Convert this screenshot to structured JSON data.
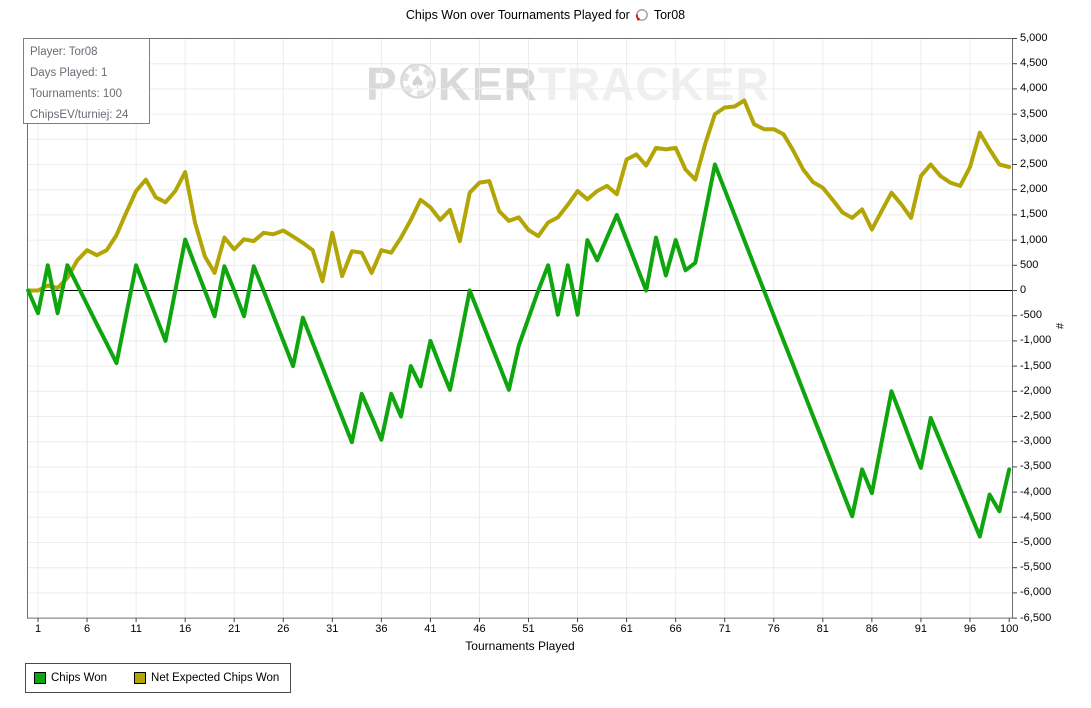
{
  "title": {
    "text": "Chips Won over Tournaments Played for",
    "player": "Tor08"
  },
  "tooltip": {
    "lines": [
      "Player: Tor08",
      "Days Played: 1",
      "Tournaments: 100",
      "ChipsEV/turniej: 24"
    ]
  },
  "watermark": {
    "part1": "P",
    "part2": "KER",
    "part3": "TRACKER",
    "chip_icon": "poker-chip-spade"
  },
  "axes": {
    "x_label": "Tournaments Played",
    "y_label": "#",
    "x_ticks": [
      1,
      6,
      11,
      16,
      21,
      26,
      31,
      36,
      41,
      46,
      51,
      56,
      61,
      66,
      71,
      76,
      81,
      86,
      91,
      96,
      100
    ],
    "y_min": -6500,
    "y_max": 5000,
    "y_step": 500
  },
  "legend": {
    "items": [
      {
        "label": "Chips Won",
        "color": "#0ea50e"
      },
      {
        "label": "Net Expected Chips Won",
        "color": "#b3a505"
      }
    ]
  },
  "colors": {
    "grid": "#ececec",
    "zero_line": "#000000",
    "plot_border": "#6e6e6e",
    "tick": "#444444",
    "chips_won": "#0ea50e",
    "net_expected": "#b3a505"
  },
  "chart_data": {
    "type": "line",
    "title": "Chips Won over Tournaments Played for Tor08",
    "xlabel": "Tournaments Played",
    "ylabel": "#",
    "xlim": [
      0,
      100
    ],
    "ylim": [
      -6500,
      5000
    ],
    "grid": true,
    "legend_position": "bottom-left",
    "x": [
      0,
      1,
      2,
      3,
      4,
      5,
      6,
      7,
      8,
      9,
      10,
      11,
      12,
      13,
      14,
      15,
      16,
      17,
      18,
      19,
      20,
      21,
      22,
      23,
      24,
      25,
      26,
      27,
      28,
      29,
      30,
      31,
      32,
      33,
      34,
      35,
      36,
      37,
      38,
      39,
      40,
      41,
      42,
      43,
      44,
      45,
      46,
      47,
      48,
      49,
      50,
      51,
      52,
      53,
      54,
      55,
      56,
      57,
      58,
      59,
      60,
      61,
      62,
      63,
      64,
      65,
      66,
      67,
      68,
      69,
      70,
      71,
      72,
      73,
      74,
      75,
      76,
      77,
      78,
      79,
      80,
      81,
      82,
      83,
      84,
      85,
      86,
      87,
      88,
      89,
      90,
      91,
      92,
      93,
      94,
      95,
      96,
      97,
      98,
      99,
      100
    ],
    "series": [
      {
        "name": "Chips Won",
        "values": [
          0,
          -450,
          500,
          -450,
          500,
          110,
          -280,
          -670,
          -1050,
          -1440,
          -470,
          500,
          0,
          -500,
          -1000,
          0,
          1010,
          500,
          0,
          -510,
          480,
          0,
          -510,
          480,
          0,
          -500,
          -1000,
          -1500,
          -540,
          -1040,
          -1530,
          -2025,
          -2520,
          -3010,
          -2050,
          -2500,
          -2960,
          -2050,
          -2500,
          -1500,
          -1900,
          -1000,
          -1500,
          -1970,
          -1000,
          0,
          -490,
          -985,
          -1475,
          -1970,
          -1100,
          -550,
          0,
          500,
          -480,
          500,
          -480,
          1000,
          600,
          1050,
          1500,
          1000,
          500,
          0,
          1050,
          300,
          1000,
          400,
          550,
          1525,
          2500,
          2000,
          1500,
          1000,
          500,
          0,
          -500,
          -1000,
          -1490,
          -1990,
          -2490,
          -2980,
          -3480,
          -3980,
          -4480,
          -3550,
          -4020,
          -3000,
          -2000,
          -2500,
          -3020,
          -3520,
          -2530,
          -3000,
          -3470,
          -3940,
          -4410,
          -4880,
          -4050,
          -4380,
          -3550
        ]
      },
      {
        "name": "Net Expected Chips Won",
        "values": [
          0,
          0,
          100,
          50,
          250,
          600,
          800,
          700,
          800,
          1100,
          1550,
          1975,
          2200,
          1850,
          1750,
          1975,
          2350,
          1350,
          680,
          350,
          1050,
          815,
          1015,
          980,
          1145,
          1115,
          1190,
          1070,
          945,
          800,
          185,
          1145,
          285,
          780,
          750,
          350,
          800,
          750,
          1050,
          1400,
          1800,
          1650,
          1400,
          1600,
          980,
          1940,
          2140,
          2170,
          1575,
          1380,
          1450,
          1200,
          1080,
          1350,
          1450,
          1700,
          1975,
          1810,
          1975,
          2075,
          1910,
          2600,
          2700,
          2480,
          2830,
          2800,
          2830,
          2400,
          2200,
          2900,
          3500,
          3630,
          3650,
          3770,
          3300,
          3200,
          3200,
          3100,
          2770,
          2400,
          2150,
          2040,
          1800,
          1550,
          1440,
          1610,
          1210,
          1580,
          1940,
          1710,
          1440,
          2270,
          2500,
          2270,
          2140,
          2075,
          2450,
          3130,
          2800,
          2500,
          2450
        ]
      }
    ]
  }
}
